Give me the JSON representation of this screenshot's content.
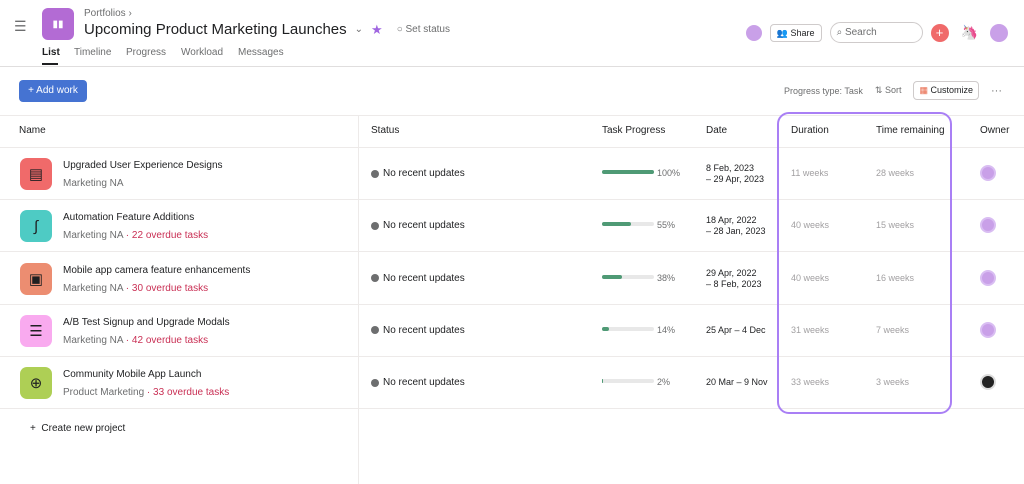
{
  "header": {
    "breadcrumb": "Portfolios",
    "title": "Upcoming Product Marketing Launches",
    "set_status": "Set status",
    "share": "Share",
    "search_placeholder": "Search",
    "tabs": [
      {
        "label": "List"
      },
      {
        "label": "Timeline"
      },
      {
        "label": "Progress"
      },
      {
        "label": "Workload"
      },
      {
        "label": "Messages"
      }
    ]
  },
  "toolbar": {
    "add_work": "+ Add work",
    "progress_type": "Progress type: Task",
    "sort": "Sort",
    "customize": "Customize",
    "more": "···"
  },
  "columns": {
    "name": "Name",
    "status": "Status",
    "task_progress": "Task Progress",
    "date": "Date",
    "duration": "Duration",
    "time_remaining": "Time remaining",
    "owner": "Owner"
  },
  "colors": {
    "accent": "#4573d2",
    "highlight": "#a97ff5",
    "progress": "#4f9a75",
    "overdue": "#c92f54"
  },
  "projects": [
    {
      "name": "Upgraded User Experience Designs",
      "team": "Marketing NA",
      "overdue": "",
      "status": "No recent updates",
      "progress": 100,
      "progress_label": "100%",
      "date1": "8 Feb, 2023",
      "date2": " – 29 Apr, 2023",
      "duration": "11 weeks",
      "remaining": "28 weeks",
      "icon": "document-icon",
      "color": "#f06a6a"
    },
    {
      "name": "Automation Feature Additions",
      "team": "Marketing NA",
      "overdue": " · 22 overdue tasks",
      "status": "No recent updates",
      "progress": 55,
      "progress_label": "55%",
      "date1": "18 Apr, 2022",
      "date2": " – 28 Jan, 2023",
      "duration": "40 weeks",
      "remaining": "15 weeks",
      "icon": "route-icon",
      "color": "#4ecbc4"
    },
    {
      "name": "Mobile app camera feature enhancements",
      "team": "Marketing NA",
      "overdue": " · 30 overdue tasks",
      "status": "No recent updates",
      "progress": 38,
      "progress_label": "38%",
      "date1": "29 Apr, 2022",
      "date2": " – 8 Feb, 2023",
      "duration": "40 weeks",
      "remaining": "16 weeks",
      "icon": "briefcase-icon",
      "color": "#ec8d71"
    },
    {
      "name": "A/B Test Signup and Upgrade Modals",
      "team": "Marketing NA",
      "overdue": " · 42 overdue tasks",
      "status": "No recent updates",
      "progress": 14,
      "progress_label": "14%",
      "date1": "25 Apr – 4 Dec",
      "date2": "",
      "duration": "31 weeks",
      "remaining": "7 weeks",
      "icon": "list-icon",
      "color": "#f9aaef"
    },
    {
      "name": "Community Mobile App Launch",
      "team": "Product Marketing",
      "overdue": " · 33 overdue tasks",
      "status": "No recent updates",
      "progress": 2,
      "progress_label": "2%",
      "date1": "20 Mar – 9 Nov",
      "date2": "",
      "duration": "33 weeks",
      "remaining": "3 weeks",
      "icon": "globe-icon",
      "color": "#aecf55"
    }
  ],
  "footer": {
    "create_project": "Create new project"
  }
}
